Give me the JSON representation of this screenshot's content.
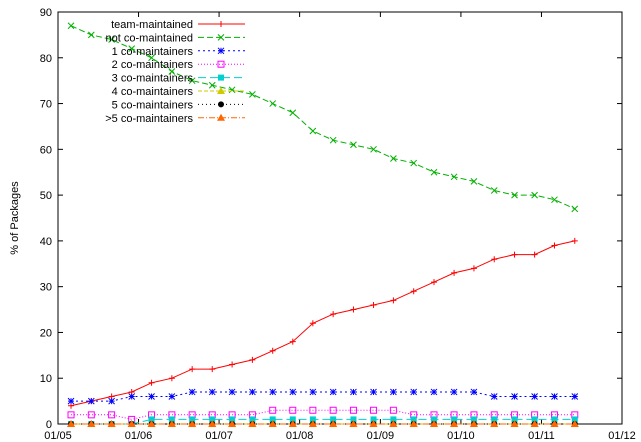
{
  "chart_data": {
    "type": "line",
    "title": "",
    "xlabel": "",
    "ylabel": "% of Packages",
    "x_ticks": [
      "01/05",
      "01/06",
      "01/07",
      "01/08",
      "01/09",
      "01/10",
      "01/11",
      "01/12"
    ],
    "ylim": [
      0,
      90
    ],
    "y_ticks": [
      0,
      10,
      20,
      30,
      40,
      50,
      60,
      70,
      80,
      90
    ],
    "grid": false,
    "legend_position": "top-left",
    "x": [
      "2005-03",
      "2005-06",
      "2005-09",
      "2005-12",
      "2006-03",
      "2006-06",
      "2006-09",
      "2006-12",
      "2007-03",
      "2007-06",
      "2007-09",
      "2007-12",
      "2008-03",
      "2008-06",
      "2008-09",
      "2008-12",
      "2009-03",
      "2009-06",
      "2009-09",
      "2009-12",
      "2010-03",
      "2010-06",
      "2010-09",
      "2010-12",
      "2011-03",
      "2011-06"
    ],
    "series": [
      {
        "name": "team-maintained",
        "color": "#ff0000",
        "marker": "plus",
        "dash": "",
        "values": [
          4,
          5,
          6,
          7,
          9,
          10,
          12,
          12,
          13,
          14,
          16,
          18,
          22,
          24,
          25,
          26,
          27,
          29,
          31,
          33,
          34,
          36,
          37,
          37,
          39,
          40
        ]
      },
      {
        "name": "not co-maintained",
        "color": "#00b000",
        "marker": "cross",
        "dash": "6,3",
        "values": [
          87,
          85,
          84,
          82,
          80,
          77,
          75,
          74,
          73,
          72,
          70,
          68,
          64,
          62,
          61,
          60,
          58,
          57,
          55,
          54,
          53,
          51,
          50,
          50,
          49,
          47
        ]
      },
      {
        "name": "1 co-maintainers",
        "color": "#0000ff",
        "marker": "star",
        "dash": "2,3",
        "values": [
          5,
          5,
          5,
          6,
          6,
          6,
          7,
          7,
          7,
          7,
          7,
          7,
          7,
          7,
          7,
          7,
          7,
          7,
          7,
          7,
          7,
          6,
          6,
          6,
          6,
          6
        ]
      },
      {
        "name": "2 co-maintainers",
        "color": "#ff00ff",
        "marker": "square-open",
        "dash": "1,2",
        "values": [
          2,
          2,
          2,
          1,
          2,
          2,
          2,
          2,
          2,
          2,
          3,
          3,
          3,
          3,
          3,
          3,
          3,
          2,
          2,
          2,
          2,
          2,
          2,
          2,
          2,
          2
        ]
      },
      {
        "name": "3 co-maintainers",
        "color": "#00d0d0",
        "marker": "square-filled",
        "dash": "8,4",
        "values": [
          0,
          0,
          0,
          0,
          1,
          1,
          1,
          1,
          1,
          1,
          1,
          1,
          1,
          1,
          1,
          1,
          1,
          1,
          1,
          1,
          1,
          1,
          1,
          1,
          1,
          1
        ]
      },
      {
        "name": "4 co-maintainers",
        "color": "#cccc00",
        "marker": "triangle-filled",
        "dash": "4,2",
        "values": [
          0,
          0,
          0,
          0,
          0,
          0,
          0,
          0,
          0,
          0,
          0,
          0,
          0,
          0,
          0,
          0,
          0,
          0,
          0,
          0,
          0,
          0,
          0,
          0,
          0,
          0
        ]
      },
      {
        "name": "5 co-maintainers",
        "color": "#000000",
        "marker": "circle-filled",
        "dash": "1,3",
        "values": [
          0,
          0,
          0,
          0,
          0,
          0,
          0,
          0,
          0,
          0,
          0,
          0,
          0,
          0,
          0,
          0,
          0,
          0,
          0,
          0,
          0,
          0,
          0,
          0,
          0,
          0
        ]
      },
      {
        "name": ">5 co-maintainers",
        "color": "#ff6600",
        "marker": "triangle-filled",
        "dash": "6,2,1,2",
        "values": [
          0,
          0,
          0,
          0,
          0,
          0,
          0,
          0,
          0,
          0,
          0,
          0,
          0,
          0,
          0,
          0,
          0,
          0,
          0,
          0,
          0,
          0,
          0,
          0,
          0,
          0
        ]
      }
    ]
  }
}
